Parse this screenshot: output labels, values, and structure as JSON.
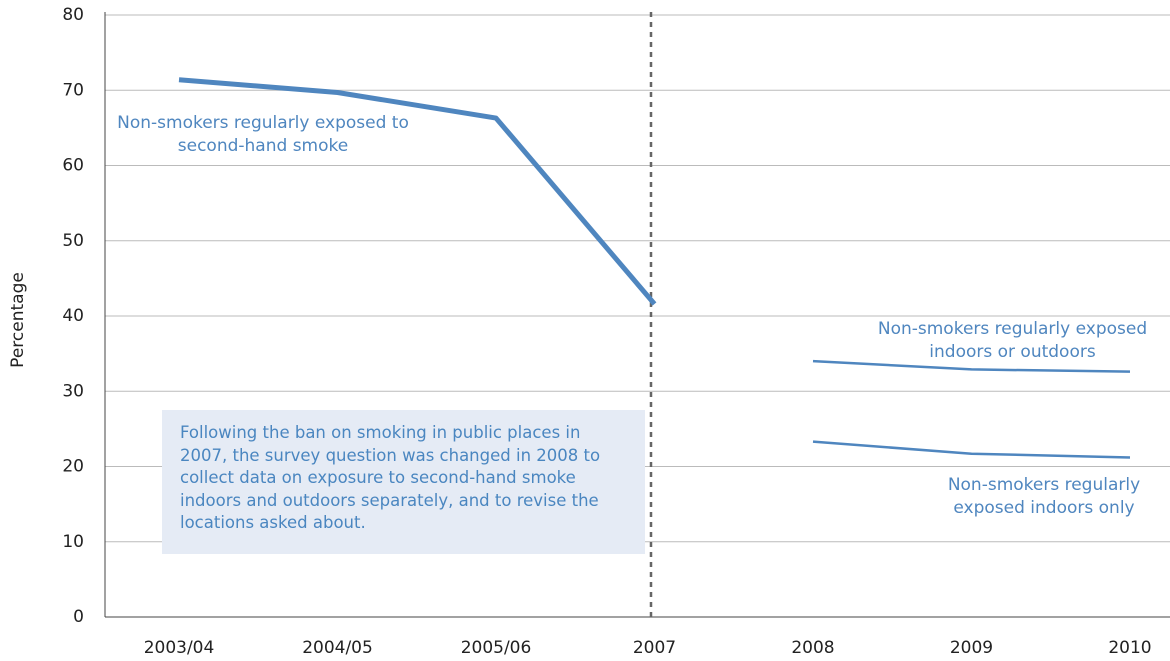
{
  "chart_data": {
    "type": "line",
    "y_label": "Percentage",
    "categories": [
      "2003/04",
      "2004/05",
      "2005/06",
      "2007",
      "2008",
      "2009",
      "2010"
    ],
    "series": [
      {
        "name": "Non-smokers regularly exposed to second-hand smoke",
        "color": "#4f86bf",
        "values": [
          71.4,
          69.7,
          66.3,
          41.6,
          null,
          null,
          null
        ]
      },
      {
        "name": "Non-smokers regularly exposed indoors or outdoors",
        "color": "#4f86bf",
        "values": [
          null,
          null,
          null,
          null,
          34.0,
          32.9,
          32.6
        ]
      },
      {
        "name": "Non-smokers regularly exposed indoors only",
        "color": "#4f86bf",
        "values": [
          null,
          null,
          null,
          null,
          23.3,
          21.7,
          21.2
        ]
      }
    ],
    "annotation": "Following the ban on smoking in public places in 2007, the survey question was changed in 2008 to collect data on exposure to second-hand smoke indoors and outdoors separately, and to revise the locations asked about.",
    "ylim": [
      0,
      80
    ],
    "yticks": [
      0,
      10,
      20,
      30,
      40,
      50,
      60,
      70,
      80
    ],
    "grid": true
  }
}
